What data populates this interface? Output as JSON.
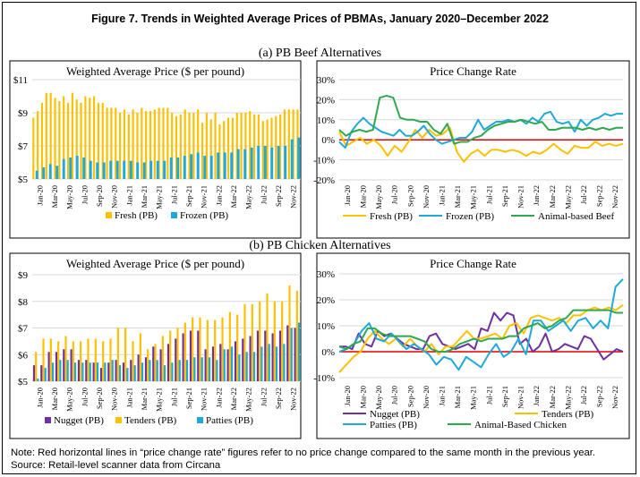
{
  "figure_title": "Figure 7. Trends in Weighted Average Prices of PBMAs, January 2020–December 2022",
  "section_a_title": "(a) PB Beef Alternatives",
  "section_b_title": "(b) PB Chicken Alternatives",
  "note": "Note: Red horizontal lines in “price change rate” figures refer to no price change compared to the same month in the previous year.",
  "source": "Source: Retail-level scanner data from Circana",
  "colors": {
    "fresh": "#FFC000",
    "frozen": "#1FA9D8",
    "nugget": "#7030A0",
    "tenders": "#FFC000",
    "patties": "#1FA9D8",
    "beef_line": "#2FA84F",
    "chicken_line": "#2FA84F",
    "zero_line": "#E00000",
    "frame": "#000000"
  },
  "chart_data": [
    {
      "id": "beef_price",
      "type": "bar",
      "title": "Weighted Average Price ($ per pound)",
      "ylim": [
        5,
        11
      ],
      "yticks": [
        "$5",
        "$7",
        "$9",
        "$11"
      ],
      "x_tick_labels": [
        "Jan-20",
        "Mar-20",
        "May-20",
        "Jul-20",
        "Sep-20",
        "Nov-20",
        "Jan-21",
        "Mar-21",
        "May-21",
        "Jul-21",
        "Sep-21",
        "Nov-21",
        "Jan-22",
        "Mar-22",
        "May-22",
        "Jul-22",
        "Sep-22",
        "Nov-22"
      ],
      "grid": true,
      "legend_position": "bottom",
      "series": [
        {
          "name": "Fresh (PB)",
          "values": [
            8.7,
            9.1,
            9.6,
            10.2,
            10.2,
            9.9,
            9.7,
            10.0,
            9.6,
            10.2,
            9.8,
            9.6,
            10.0,
            9.9,
            10.0,
            9.6,
            9.6,
            9.3,
            9.3,
            9.3,
            9.0,
            9.2,
            8.9,
            9.2,
            9.0,
            9.3,
            9.1,
            9.1,
            9.2,
            9.3,
            9.3,
            9.3,
            9.0,
            8.8,
            8.9,
            9.2,
            9.0,
            9.0,
            9.2,
            8.4,
            9.0,
            8.6,
            9.0,
            8.3,
            8.5,
            8.7,
            8.7,
            9.0,
            9.0,
            9.0,
            9.1,
            8.9,
            8.9,
            8.5,
            8.6,
            8.7,
            8.8,
            8.9,
            9.2,
            9.2,
            9.2,
            9.2
          ]
        },
        {
          "name": "Frozen (PB)",
          "values": [
            5.5,
            5.7,
            5.9,
            5.8,
            6.2,
            6.3,
            6.4,
            6.3,
            6.1,
            6.0,
            6.0,
            6.1,
            6.1,
            6.1,
            6.1,
            6.0,
            6.0,
            6.1,
            6.1,
            6.1,
            6.3,
            6.3,
            6.4,
            6.5,
            6.6,
            6.4,
            6.4,
            6.6,
            6.6,
            6.6,
            6.8,
            6.8,
            6.9,
            7.0,
            7.0,
            6.9,
            7.0,
            7.0,
            7.4,
            7.5
          ]
        }
      ]
    },
    {
      "id": "beef_change",
      "type": "line",
      "title": "Price Change Rate",
      "ylim": [
        -20,
        30
      ],
      "yticks": [
        "-20%",
        "-10%",
        "0%",
        "10%",
        "20%",
        "30%"
      ],
      "x_tick_labels": [
        "Jan-20",
        "Mar-20",
        "May-20",
        "Jul-20",
        "Sep-20",
        "Nov-20",
        "Jan-21",
        "Mar-21",
        "May-21",
        "Jul-21",
        "Sep-21",
        "Nov-21",
        "Jan-22",
        "Mar-22",
        "May-22",
        "Jul-22",
        "Sep-22",
        "Nov-22"
      ],
      "grid": true,
      "legend_position": "bottom",
      "series": [
        {
          "name": "Fresh (PB)",
          "values": [
            4,
            -3,
            -1,
            1,
            -2,
            0,
            -3,
            -8,
            -3,
            -6,
            -1,
            5,
            1,
            5,
            2,
            3,
            6,
            -6,
            -11,
            -7,
            -5,
            -8,
            -5,
            -5,
            -6,
            -5,
            -6,
            -8,
            -6,
            -7,
            -5,
            -2,
            -5,
            -7,
            -3,
            -4,
            -4,
            -1,
            -3,
            -2,
            -3,
            -2
          ]
        },
        {
          "name": "Frozen (PB)",
          "values": [
            -1,
            -4,
            4,
            8,
            11,
            8,
            6,
            4,
            3,
            2,
            5,
            2,
            2,
            4,
            7,
            3,
            0,
            -2,
            -1,
            0,
            1,
            1,
            4,
            10,
            5,
            7,
            9,
            9,
            10,
            9,
            10,
            8,
            11,
            9,
            13,
            14,
            9,
            8,
            9,
            4,
            10,
            7,
            10,
            11,
            13,
            12,
            13,
            13
          ]
        },
        {
          "name": "Animal-based Beef",
          "values": [
            5,
            2,
            4,
            5,
            4,
            5,
            21,
            22,
            21,
            11,
            10,
            10,
            9,
            9,
            5,
            3,
            8,
            -2,
            -1,
            -1,
            1,
            2,
            5,
            7,
            8,
            9,
            9,
            10,
            9,
            8,
            9,
            5,
            5,
            6,
            6,
            6,
            5,
            6,
            5,
            6,
            5,
            6,
            6
          ]
        }
      ]
    },
    {
      "id": "chicken_price",
      "type": "bar",
      "title": "Weighted Average Price ($ per pound)",
      "ylim": [
        5,
        9
      ],
      "yticks": [
        "$5",
        "$6",
        "$7",
        "$8",
        "$9"
      ],
      "x_tick_labels": [
        "Jan-20",
        "Mar-20",
        "May-20",
        "Jul-20",
        "Sep-20",
        "Nov-20",
        "Jan-21",
        "Mar-21",
        "May-21",
        "Jul-21",
        "Sep-21",
        "Nov-21",
        "Jan-22",
        "Mar-22",
        "May-22",
        "Jul-22",
        "Sep-22",
        "Nov-22"
      ],
      "grid": true,
      "legend_position": "bottom",
      "series": [
        {
          "name": "Nugget (PB)",
          "values": [
            5.6,
            5.6,
            6.1,
            6.1,
            6.2,
            6.2,
            5.8,
            5.8,
            5.7,
            5.5,
            5.7,
            5.8,
            5.7,
            5.8,
            6.0,
            5.9,
            6.3,
            6.2,
            6.4,
            6.6,
            6.8,
            6.9,
            6.9,
            6.2,
            6.3,
            6.4,
            6.2,
            6.5,
            6.6,
            6.7,
            6.9,
            6.9,
            6.8,
            6.9,
            7.1,
            7.0
          ]
        },
        {
          "name": "Tenders (PB)",
          "values": [
            6.1,
            6.6,
            6.6,
            6.5,
            6.7,
            6.5,
            6.5,
            6.6,
            6.6,
            6.5,
            6.6,
            7.0,
            7.0,
            6.5,
            6.8,
            6.2,
            6.4,
            6.7,
            6.9,
            7.0,
            7.2,
            7.4,
            7.4,
            7.3,
            7.3,
            7.4,
            7.6,
            7.5,
            7.9,
            7.9,
            8.0,
            8.3,
            8.0,
            8.0,
            8.6,
            8.4
          ]
        },
        {
          "name": "Patties  (PB)",
          "values": [
            5.1,
            5.5,
            5.7,
            5.8,
            5.8,
            5.7,
            5.7,
            5.7,
            5.7,
            5.7,
            5.8,
            5.6,
            5.5,
            5.6,
            5.7,
            5.8,
            5.8,
            5.6,
            5.7,
            5.8,
            5.8,
            5.9,
            5.9,
            5.9,
            5.8,
            6.2,
            6.3,
            6.0,
            6.1,
            6.1,
            6.3,
            6.4,
            6.3,
            6.4,
            7.0,
            7.2
          ]
        }
      ]
    },
    {
      "id": "chicken_change",
      "type": "line",
      "title": "Price Change Rate",
      "ylim": [
        -10,
        30
      ],
      "yticks": [
        "-10%",
        "0%",
        "10%",
        "20%",
        "30%"
      ],
      "x_tick_labels": [
        "Jan-20",
        "Mar-20",
        "May-20",
        "Jul-20",
        "Sep-20",
        "Nov-20",
        "Jan-21",
        "Mar-21",
        "May-21",
        "Jul-21",
        "Sep-21",
        "Nov-21",
        "Jan-22",
        "Mar-22",
        "May-22",
        "Jul-22",
        "Sep-22",
        "Nov-22"
      ],
      "grid": true,
      "legend_position": "bottom",
      "series": [
        {
          "name": "Nugget (PB)",
          "values": [
            2,
            2,
            1,
            7,
            3,
            2,
            8,
            6,
            7,
            5,
            3,
            2,
            1,
            1,
            6,
            7,
            3,
            2,
            1,
            2,
            3,
            1,
            9,
            8,
            15,
            12,
            15,
            14,
            3,
            5,
            0,
            2,
            7,
            0,
            1,
            3,
            2,
            1,
            6,
            5,
            1,
            -3,
            -1,
            1,
            0
          ]
        },
        {
          "name": "Tenders (PB)",
          "values": [
            -8,
            -5,
            -2,
            0,
            5,
            8,
            5,
            3,
            5,
            2,
            5,
            2,
            0,
            3,
            -1,
            2,
            2,
            5,
            8,
            5,
            5,
            6,
            7,
            5,
            10,
            11,
            7,
            13,
            14,
            13,
            12,
            13,
            11,
            14,
            14,
            16,
            17,
            16,
            17,
            16,
            18
          ]
        },
        {
          "name": "Patties  (PB)",
          "values": [
            0,
            1,
            3,
            8,
            11,
            5,
            4,
            7,
            4,
            1,
            3,
            1,
            -1,
            -5,
            -2,
            -3,
            -7,
            -2,
            -4,
            -6,
            -1,
            3,
            -2,
            0,
            5,
            -1,
            12,
            12,
            8,
            10,
            12,
            8,
            12,
            13,
            9,
            12,
            9,
            25,
            28
          ]
        },
        {
          "name": "Animal-Based Chicken",
          "values": [
            2,
            1,
            3,
            4,
            9,
            9,
            7,
            6,
            6,
            6,
            6,
            5,
            4,
            1,
            0,
            0,
            1,
            3,
            4,
            5,
            4,
            5,
            5,
            5,
            6,
            6,
            9,
            10,
            11,
            9,
            10,
            12,
            13,
            16,
            16,
            16,
            16,
            16,
            16,
            15,
            15
          ]
        }
      ]
    }
  ]
}
